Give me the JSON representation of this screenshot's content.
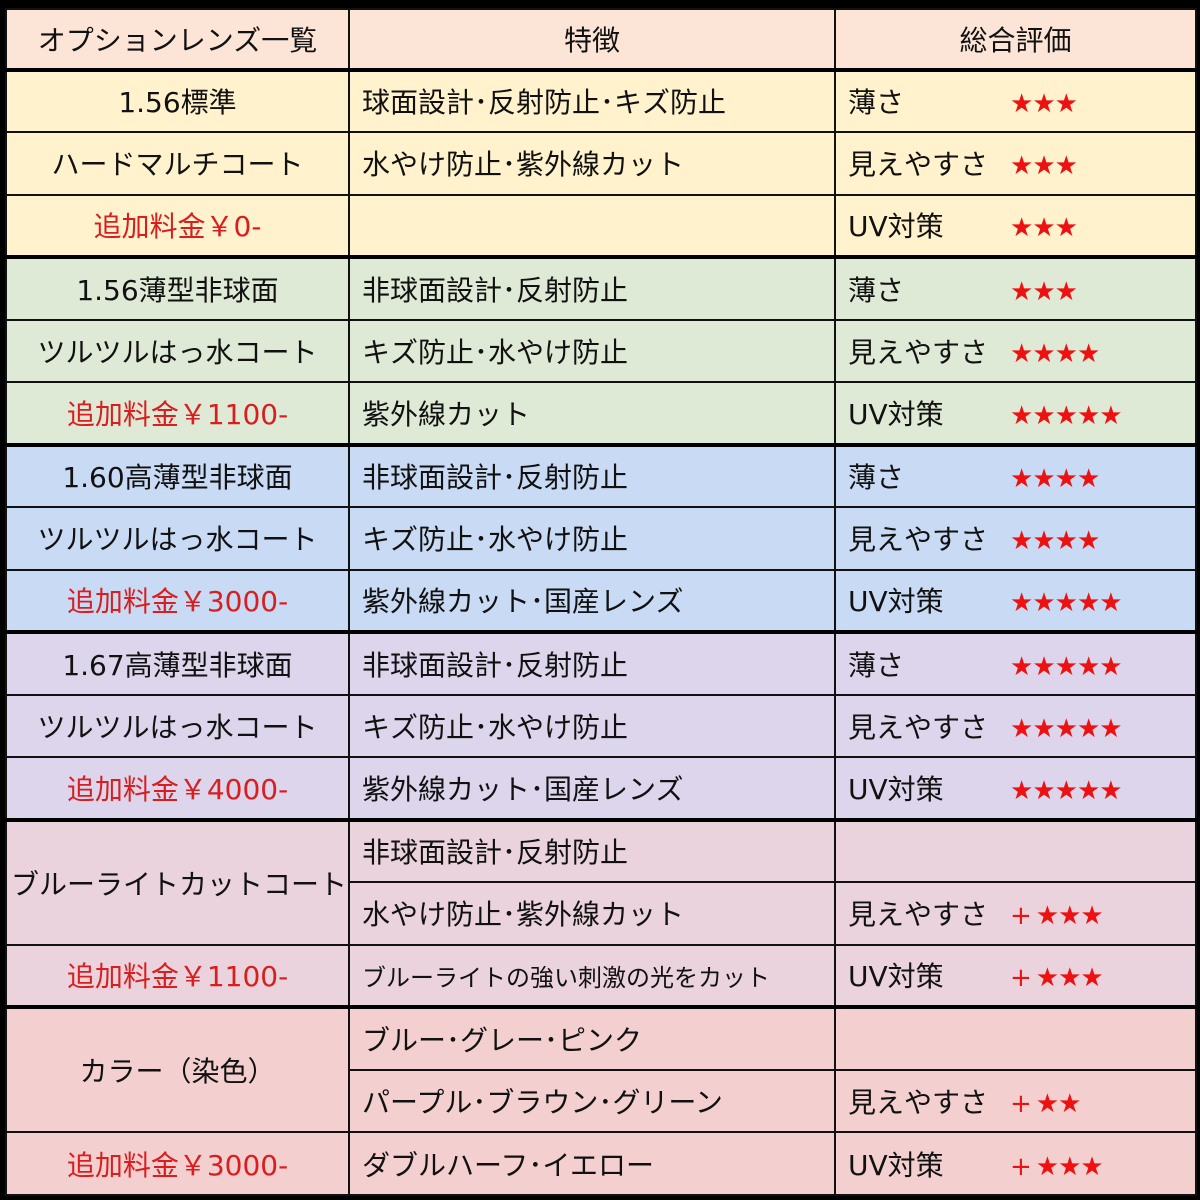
{
  "header": {
    "col1": "オプションレンズ一覧",
    "col2": "特徴",
    "col3": "総合評価",
    "bg": "#fce4d6"
  },
  "colors": {
    "price": "#d81e1e",
    "star": "#ee1111"
  },
  "sections": [
    {
      "bg": "#fff2cc",
      "merged": false,
      "rows": [
        {
          "name": "1.56標準",
          "feature": "球面設計･反射防止･キズ防止",
          "label": "薄さ",
          "stars": 3,
          "plus": false
        },
        {
          "name": "ハードマルチコート",
          "feature": "水やけ防止･紫外線カット",
          "label": "見えやすさ",
          "stars": 3,
          "plus": false
        },
        {
          "name": "追加料金￥0-",
          "price": true,
          "feature": "",
          "label": "UV対策",
          "stars": 3,
          "plus": false
        }
      ]
    },
    {
      "bg": "#dfead6",
      "merged": false,
      "rows": [
        {
          "name": "1.56薄型非球面",
          "feature": "非球面設計･反射防止",
          "label": "薄さ",
          "stars": 3,
          "plus": false
        },
        {
          "name": "ツルツルはっ水コート",
          "feature": "キズ防止･水やけ防止",
          "label": "見えやすさ",
          "stars": 4,
          "plus": false
        },
        {
          "name": "追加料金￥1100-",
          "price": true,
          "feature": "紫外線カット",
          "label": "UV対策",
          "stars": 5,
          "plus": false
        }
      ]
    },
    {
      "bg": "#c9daf5",
      "merged": false,
      "rows": [
        {
          "name": "1.60高薄型非球面",
          "feature": "非球面設計･反射防止",
          "label": "薄さ",
          "stars": 4,
          "plus": false
        },
        {
          "name": "ツルツルはっ水コート",
          "feature": "キズ防止･水やけ防止",
          "label": "見えやすさ",
          "stars": 4,
          "plus": false
        },
        {
          "name": "追加料金￥3000-",
          "price": true,
          "feature": "紫外線カット･国産レンズ",
          "label": "UV対策",
          "stars": 5,
          "plus": false
        }
      ]
    },
    {
      "bg": "#dcd5ec",
      "merged": false,
      "rows": [
        {
          "name": "1.67高薄型非球面",
          "feature": "非球面設計･反射防止",
          "label": "薄さ",
          "stars": 5,
          "plus": false
        },
        {
          "name": "ツルツルはっ水コート",
          "feature": "キズ防止･水やけ防止",
          "label": "見えやすさ",
          "stars": 5,
          "plus": false
        },
        {
          "name": "追加料金￥4000-",
          "price": true,
          "feature": "紫外線カット･国産レンズ",
          "label": "UV対策",
          "stars": 5,
          "plus": false
        }
      ]
    },
    {
      "bg": "#ead3dc",
      "merged": true,
      "rows": [
        {
          "name": "ブルーライトカットコート",
          "feature": "非球面設計･反射防止",
          "label": "",
          "stars": 0,
          "plus": false
        },
        {
          "feature": "水やけ防止･紫外線カット",
          "label": "見えやすさ",
          "stars": 3,
          "plus": true
        },
        {
          "name": "追加料金￥1100-",
          "price": true,
          "feature": "ブルーライトの強い刺激の光をカット",
          "small": true,
          "label": "UV対策",
          "stars": 3,
          "plus": true
        }
      ]
    },
    {
      "bg": "#f4cfcf",
      "merged": true,
      "rows": [
        {
          "name": "カラー（染色）",
          "feature": "ブルー･グレー･ピンク",
          "label": "",
          "stars": 0,
          "plus": false
        },
        {
          "feature": "パープル･ブラウン･グリーン",
          "label": "見えやすさ",
          "stars": 2,
          "plus": true
        },
        {
          "name": "追加料金￥3000-",
          "price": true,
          "feature": "ダブルハーフ･イエロー",
          "label": "UV対策",
          "stars": 3,
          "plus": true
        }
      ]
    }
  ]
}
